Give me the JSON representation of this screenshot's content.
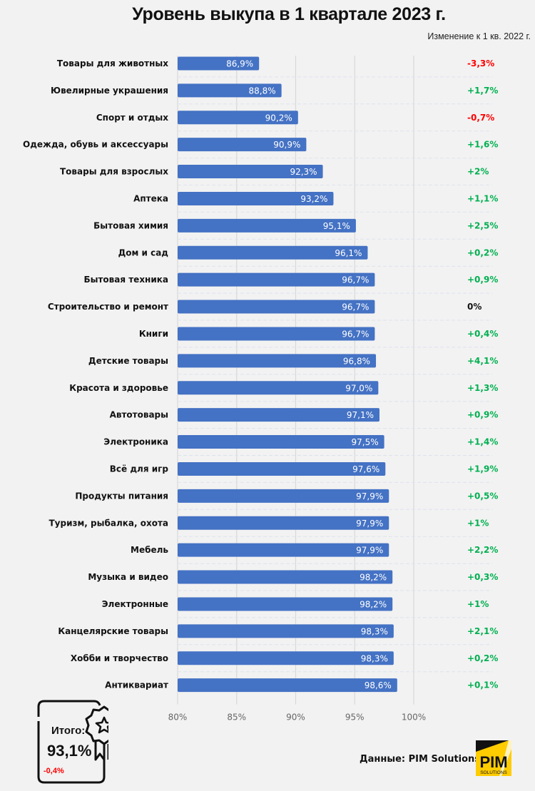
{
  "title": "Уровень выкупа в 1 квартале 2023 г.",
  "subtitle": "Изменение к 1 кв. 2022 г.",
  "colors": {
    "bar": "#4472c4",
    "positive": "#00b050",
    "negative": "#ff0000",
    "neutral": "#111111",
    "logo_yellow": "#ffcc00"
  },
  "chart_data": {
    "type": "bar",
    "orientation": "horizontal",
    "title": "Уровень выкупа в 1 квартале 2023 г.",
    "xlabel": "",
    "ylabel": "",
    "xlim": [
      80,
      100
    ],
    "x_ticks": [
      "80%",
      "85%",
      "90%",
      "95%",
      "100%"
    ],
    "grid": true,
    "categories": [
      "Товары для животных",
      "Ювелирные украшения",
      "Спорт и отдых",
      "Одежда, обувь и аксессуары",
      "Товары для взрослых",
      "Аптека",
      "Бытовая химия",
      "Дом и сад",
      "Бытовая техника",
      "Строительство и ремонт",
      "Книги",
      "Детские товары",
      "Красота и здоровье",
      "Автотовары",
      "Электроника",
      "Всё для игр",
      "Продукты питания",
      "Туризм, рыбалка, охота",
      "Мебель",
      "Музыка и видео",
      "Электронные",
      "Канцелярские товары",
      "Хобби и творчество",
      "Антиквариат"
    ],
    "values": [
      86.9,
      88.8,
      90.2,
      90.9,
      92.3,
      93.2,
      95.1,
      96.1,
      96.7,
      96.7,
      96.7,
      96.8,
      97.0,
      97.1,
      97.5,
      97.6,
      97.9,
      97.9,
      97.9,
      98.2,
      98.2,
      98.3,
      98.3,
      98.6
    ],
    "value_labels": [
      "86,9%",
      "88,8%",
      "90,2%",
      "90,9%",
      "92,3%",
      "93,2%",
      "95,1%",
      "96,1%",
      "96,7%",
      "96,7%",
      "96,7%",
      "96,8%",
      "97,0%",
      "97,1%",
      "97,5%",
      "97,6%",
      "97,9%",
      "97,9%",
      "97,9%",
      "98,2%",
      "98,2%",
      "98,3%",
      "98,3%",
      "98,6%"
    ],
    "change_header": "Изменение к 1 кв. 2022 г.",
    "changes": [
      -3.3,
      1.7,
      -0.7,
      1.6,
      2,
      1.1,
      2.5,
      0.2,
      0.9,
      0,
      0.4,
      4.1,
      1.3,
      0.9,
      1.4,
      1.9,
      0.5,
      1,
      2.2,
      0.3,
      1,
      2.1,
      0.2,
      0.1
    ],
    "change_labels": [
      "-3,3%",
      "+1,7%",
      "-0,7%",
      "+1,6%",
      "+2%",
      "+1,1%",
      "+2,5%",
      "+0,2%",
      "+0,9%",
      "0%",
      "+0,4%",
      "+4,1%",
      "+1,3%",
      "+0,9%",
      "+1,4%",
      "+1,9%",
      "+0,5%",
      "+1%",
      "+2,2%",
      "+0,3%",
      "+1%",
      "+2,1%",
      "+0,2%",
      "+0,1%"
    ]
  },
  "total": {
    "label": "Итого:",
    "value": "93,1%",
    "change": "-0,4%",
    "icon": "award-certificate-icon"
  },
  "source": "Данные: PIM Solutions",
  "logo": {
    "main": "PIM",
    "sub": "SOLUTIONS"
  }
}
